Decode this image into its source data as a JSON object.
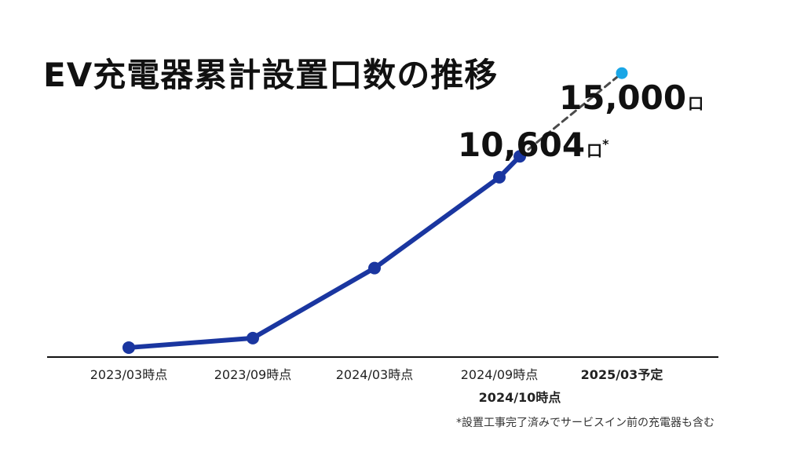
{
  "title": "EV充電器累計設置口数の推移",
  "footnote": "*設置工事完了済みでサービスイン前の充電器も含む",
  "colors": {
    "line": "#1a36a0",
    "projection_line": "#4a4a4a",
    "projection_point": "#1aa6e6",
    "axis": "#111111"
  },
  "chart_data": {
    "type": "line",
    "title": "EV充電器累計設置口数の推移",
    "xlabel": "",
    "ylabel": "",
    "categories": [
      "2023/03時点",
      "2023/09時点",
      "2024/03時点",
      "2024/09時点",
      "2024/10時点",
      "2025/03予定"
    ],
    "series": [
      {
        "values": [
          500,
          1000,
          4700,
          9500,
          10604,
          null
        ]
      },
      {
        "style": "dashed",
        "values": [
          null,
          null,
          null,
          null,
          10604,
          15000
        ]
      }
    ],
    "ylim": [
      0,
      17000
    ],
    "grid": false,
    "annotations": [
      {
        "category": "2024/10時点",
        "value_text": "10,604",
        "unit": "口",
        "mark": "*"
      },
      {
        "category": "2025/03予定",
        "value_text": "15,000",
        "unit": "口"
      }
    ]
  }
}
